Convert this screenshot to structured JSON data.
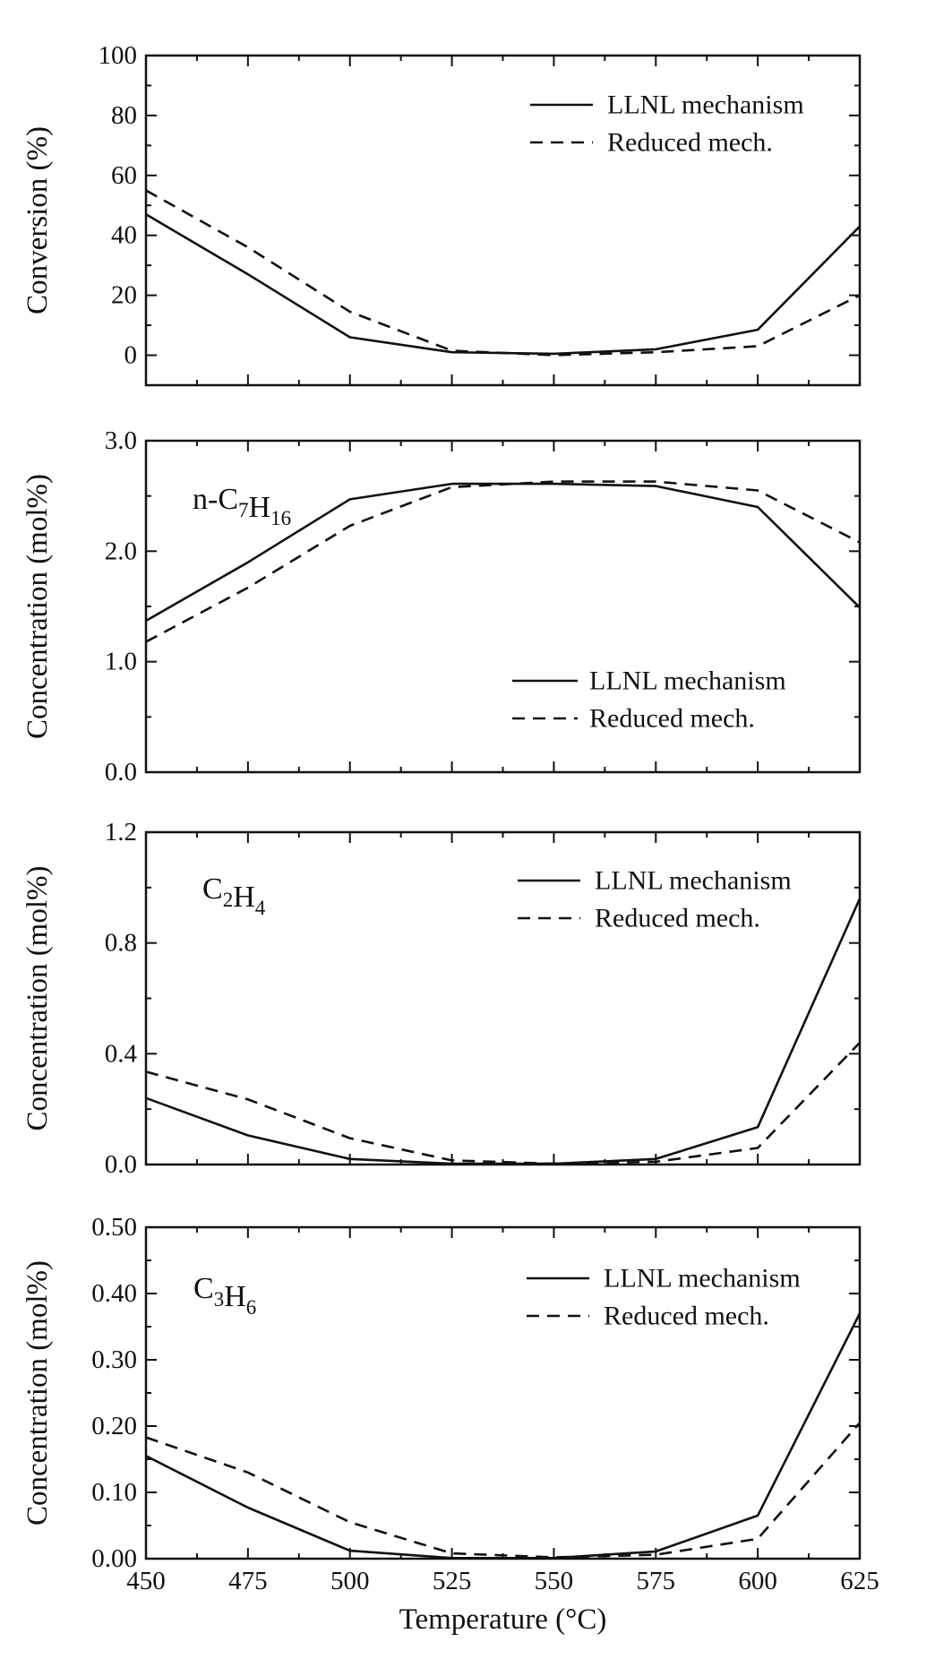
{
  "chart_data": [
    {
      "type": "line",
      "annotation": "",
      "ylabel": "Conversion (%)",
      "ylim": [
        -10,
        100
      ],
      "yticks": [
        "0",
        "20",
        "40",
        "60",
        "80",
        "100"
      ],
      "ytick_values": [
        0,
        20,
        40,
        60,
        80,
        100
      ],
      "x": [
        450,
        475,
        500,
        525,
        550,
        575,
        600,
        625
      ],
      "series": [
        {
          "name": "LLNL mechanism",
          "style": "solid",
          "values": [
            47,
            27,
            6,
            1,
            0.5,
            2,
            8.5,
            43
          ]
        },
        {
          "name": "Reduced mech.",
          "style": "dashed",
          "values": [
            55,
            36,
            14.5,
            1.5,
            0,
            1,
            3,
            20
          ]
        }
      ],
      "legend_position": "top-right"
    },
    {
      "type": "line",
      "annotation": "n-C7H16",
      "ylabel": "Concentration (mol%)",
      "ylim": [
        0,
        3.0
      ],
      "yticks": [
        "0.0",
        "1.0",
        "2.0",
        "3.0"
      ],
      "ytick_values": [
        0,
        1,
        2,
        3
      ],
      "x": [
        450,
        475,
        500,
        525,
        550,
        575,
        600,
        625
      ],
      "series": [
        {
          "name": "LLNL mechanism",
          "style": "solid",
          "values": [
            1.37,
            1.9,
            2.47,
            2.61,
            2.61,
            2.59,
            2.4,
            1.49
          ]
        },
        {
          "name": "Reduced mech.",
          "style": "dashed",
          "values": [
            1.18,
            1.67,
            2.23,
            2.58,
            2.63,
            2.63,
            2.55,
            2.08
          ]
        }
      ],
      "legend_position": "bottom-right"
    },
    {
      "type": "line",
      "annotation": "C2H4",
      "ylabel": "Concentration (mol%)",
      "ylim": [
        0,
        1.2
      ],
      "yticks": [
        "0.0",
        "0.4",
        "0.8",
        "1.2"
      ],
      "ytick_values": [
        0,
        0.4,
        0.8,
        1.2
      ],
      "x": [
        450,
        475,
        500,
        525,
        550,
        575,
        600,
        625
      ],
      "series": [
        {
          "name": "LLNL mechanism",
          "style": "solid",
          "values": [
            0.24,
            0.105,
            0.02,
            0.003,
            0.003,
            0.02,
            0.135,
            0.96
          ]
        },
        {
          "name": "Reduced mech.",
          "style": "dashed",
          "values": [
            0.335,
            0.235,
            0.095,
            0.015,
            0.003,
            0.01,
            0.06,
            0.44
          ]
        }
      ],
      "legend_position": "top-right"
    },
    {
      "type": "line",
      "annotation": "C3H6",
      "ylabel": "Concentration (mol%)",
      "xlabel": "Temperature (°C)",
      "ylim": [
        0,
        0.5
      ],
      "yticks": [
        "0.00",
        "0.10",
        "0.20",
        "0.30",
        "0.40",
        "0.50"
      ],
      "ytick_values": [
        0,
        0.1,
        0.2,
        0.3,
        0.4,
        0.5
      ],
      "xticks": [
        "450",
        "475",
        "500",
        "525",
        "550",
        "575",
        "600",
        "625"
      ],
      "x": [
        450,
        475,
        500,
        525,
        550,
        575,
        600,
        625
      ],
      "series": [
        {
          "name": "LLNL mechanism",
          "style": "solid",
          "values": [
            0.155,
            0.077,
            0.012,
            0.001,
            0.001,
            0.011,
            0.065,
            0.37
          ]
        },
        {
          "name": "Reduced mech.",
          "style": "dashed",
          "values": [
            0.183,
            0.13,
            0.055,
            0.008,
            0.002,
            0.006,
            0.03,
            0.205
          ]
        }
      ],
      "legend_position": "top-right"
    }
  ]
}
